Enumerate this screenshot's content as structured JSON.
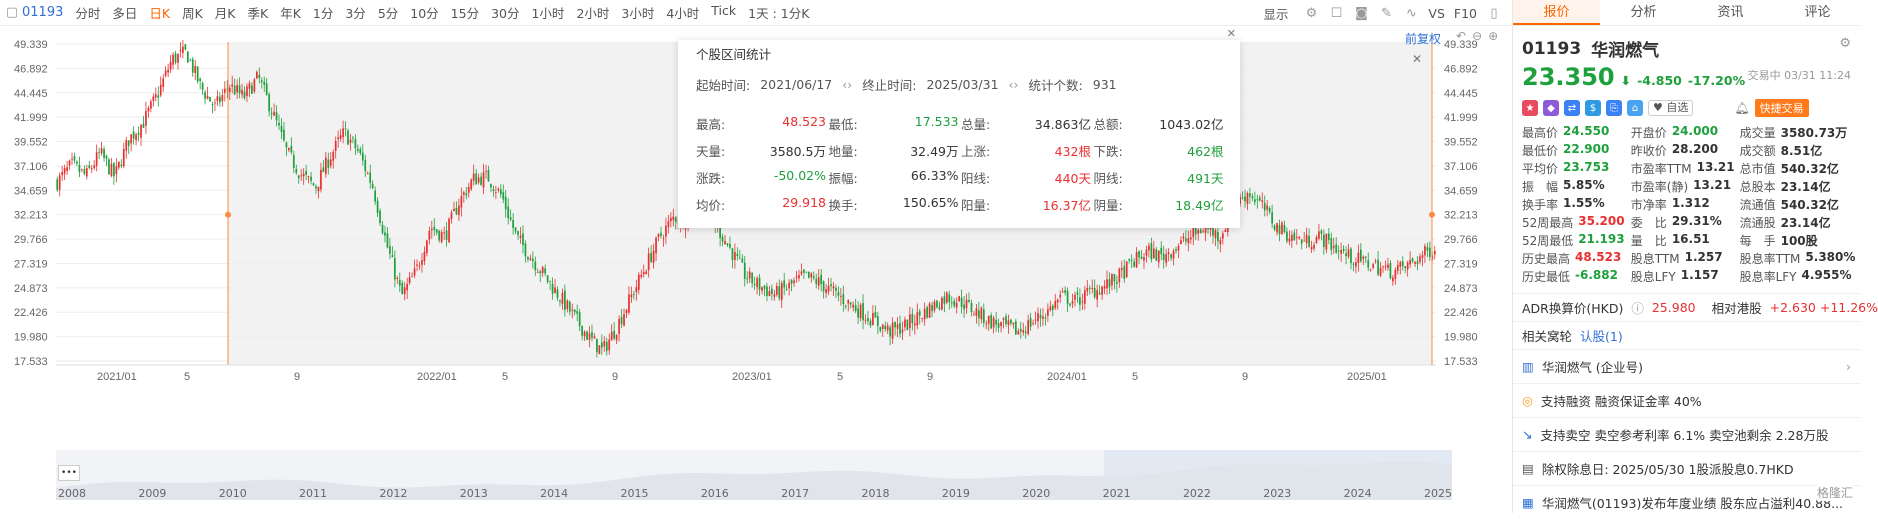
{
  "toolbar": {
    "code": "01193",
    "items": [
      "分时",
      "多日",
      "日K",
      "周K",
      "月K",
      "季K",
      "年K",
      "1分",
      "3分",
      "5分",
      "10分",
      "15分",
      "30分",
      "1小时",
      "2小时",
      "3小时",
      "4小时",
      "Tick",
      "1天 : 1分K"
    ],
    "active": "日K",
    "display": "显示",
    "vs": "VS",
    "f10": "F10"
  },
  "chart": {
    "fq": "前复权",
    "y_ticks": [
      "49.339",
      "46.892",
      "44.445",
      "41.999",
      "39.552",
      "37.106",
      "34.659",
      "32.213",
      "29.766",
      "27.319",
      "24.873",
      "22.426",
      "19.980",
      "17.533"
    ],
    "x_ticks": [
      "2021/01",
      "5",
      "9",
      "2022/01",
      "5",
      "9",
      "2023/01",
      "5",
      "9",
      "2024/01",
      "5",
      "9",
      "2025/01"
    ],
    "nav_years": [
      "2008",
      "2009",
      "2010",
      "2011",
      "2012",
      "2013",
      "2014",
      "2015",
      "2016",
      "2017",
      "2018",
      "2019",
      "2020",
      "2021",
      "2022",
      "2023",
      "2024",
      "2025"
    ],
    "nav_more": "•••"
  },
  "chart_data": {
    "type": "candlestick",
    "series": [
      {
        "values": [
          35.5,
          37.2,
          36.1,
          38.4,
          36.0,
          39.8,
          41.5,
          44.3,
          47.8,
          48.5,
          45.0,
          43.0,
          45.2,
          44.0,
          46.0,
          42.5,
          38.5,
          36.2,
          35.0,
          38.0,
          40.5,
          38.5,
          35.0,
          29.0,
          24.0,
          26.5,
          31.0,
          30.0,
          33.5,
          35.8,
          36.0,
          34.0,
          30.0,
          28.0,
          26.0,
          24.0,
          22.0,
          20.0,
          18.5,
          21.0,
          24.0,
          27.0,
          30.0,
          32.0,
          31.5,
          33.0,
          31.0,
          28.5,
          26.0,
          25.0,
          24.2,
          25.0,
          26.0,
          25.5,
          24.5,
          23.5,
          22.5,
          21.5,
          20.5,
          21.0,
          22.0,
          23.0,
          24.0,
          23.5,
          22.5,
          21.5,
          21.0,
          20.5,
          21.5,
          22.5,
          24.0,
          23.5,
          24.5,
          25.0,
          26.0,
          27.5,
          28.5,
          28.0,
          29.0,
          30.0,
          31.0,
          30.0,
          33.0,
          34.5,
          33.0,
          31.0,
          30.0,
          29.5,
          30.0,
          29.0,
          28.0,
          27.5,
          27.0,
          26.5,
          27.0,
          28.0,
          29.0
        ]
      }
    ],
    "ylim": [
      17.533,
      49.339
    ]
  },
  "stats": {
    "title": "个股区间统计",
    "start_label": "起始时间:",
    "start": "2021/06/17",
    "end_label": "终止时间:",
    "end": "2025/03/31",
    "count_label": "统计个数:",
    "count": "931",
    "rows": [
      [
        [
          "最高:",
          "48.523",
          "red"
        ],
        [
          "最低:",
          "17.533",
          "green"
        ],
        [
          "总量:",
          "34.863亿",
          ""
        ],
        [
          "总额:",
          "1043.02亿",
          ""
        ]
      ],
      [
        [
          "天量:",
          "3580.5万",
          ""
        ],
        [
          "地量:",
          "32.49万",
          ""
        ],
        [
          "上涨:",
          "432根",
          "red"
        ],
        [
          "下跌:",
          "462根",
          "green"
        ]
      ],
      [
        [
          "涨跌:",
          "-50.02%",
          "green"
        ],
        [
          "振幅:",
          "66.33%",
          ""
        ],
        [
          "阳线:",
          "440天",
          "red"
        ],
        [
          "阴线:",
          "491天",
          "green"
        ]
      ],
      [
        [
          "均价:",
          "29.918",
          "red"
        ],
        [
          "换手:",
          "150.65%",
          ""
        ],
        [
          "阳量:",
          "16.37亿",
          "red"
        ],
        [
          "阴量:",
          "18.49亿",
          "green"
        ]
      ]
    ]
  },
  "right": {
    "tabs": [
      "报价",
      "分析",
      "资讯",
      "评论"
    ],
    "code": "01193",
    "name": "华润燃气",
    "price": "23.350",
    "arrow": "⬇",
    "change": "-4.850",
    "pct": "-17.20%",
    "status": "交易中 03/31 11:24",
    "watch": "自选",
    "fast": "快捷交易",
    "quote": [
      [
        [
          "最高价",
          "24.550",
          "green"
        ],
        [
          "开盘价",
          "24.000",
          "green"
        ],
        [
          "成交量",
          "3580.73万",
          ""
        ]
      ],
      [
        [
          "最低价",
          "22.900",
          "green"
        ],
        [
          "昨收价",
          "28.200",
          ""
        ],
        [
          "成交额",
          "8.51亿",
          ""
        ]
      ],
      [
        [
          "平均价",
          "23.753",
          "green"
        ],
        [
          "市盈率TTM",
          "13.21",
          ""
        ],
        [
          "总市值",
          "540.32亿",
          ""
        ]
      ],
      [
        [
          "振　幅",
          "5.85%",
          ""
        ],
        [
          "市盈率(静)",
          "13.21",
          ""
        ],
        [
          "总股本",
          "23.14亿",
          ""
        ]
      ],
      [
        [
          "换手率",
          "1.55%",
          ""
        ],
        [
          "市净率",
          "1.312",
          ""
        ],
        [
          "流通值",
          "540.32亿",
          ""
        ]
      ],
      [
        [
          "52周最高",
          "35.200",
          "red"
        ],
        [
          "委　比",
          "29.31%",
          ""
        ],
        [
          "流通股",
          "23.14亿",
          ""
        ]
      ],
      [
        [
          "52周最低",
          "21.193",
          "green"
        ],
        [
          "量　比",
          "16.51",
          ""
        ],
        [
          "每　手",
          "100股",
          ""
        ]
      ],
      [
        [
          "历史最高",
          "48.523",
          "red"
        ],
        [
          "股息TTM",
          "1.257",
          ""
        ],
        [
          "股息率TTM",
          "5.380%",
          ""
        ]
      ],
      [
        [
          "历史最低",
          "-6.882",
          "green"
        ],
        [
          "股息LFY",
          "1.157",
          ""
        ],
        [
          "股息率LFY",
          "4.955%",
          ""
        ]
      ]
    ],
    "adr_label": "ADR换算价(HKD)",
    "adr": "25.980",
    "rel_label": "相对港股",
    "rel": "+2.630 +11.26%",
    "related_label": "相关窝轮",
    "related": "认股(1)",
    "info": [
      "华润燃气 (企业号)",
      "支持融资 融资保证金率 40%",
      "支持卖空 卖空参考利率 6.1% 卖空池剩余 2.28万股",
      "除权除息日: 2025/05/30 1股派股息0.7HKD",
      "华润燃气(01193)发布年度业绩 股东应占溢利40.88..."
    ],
    "brand": "格隆汇"
  }
}
